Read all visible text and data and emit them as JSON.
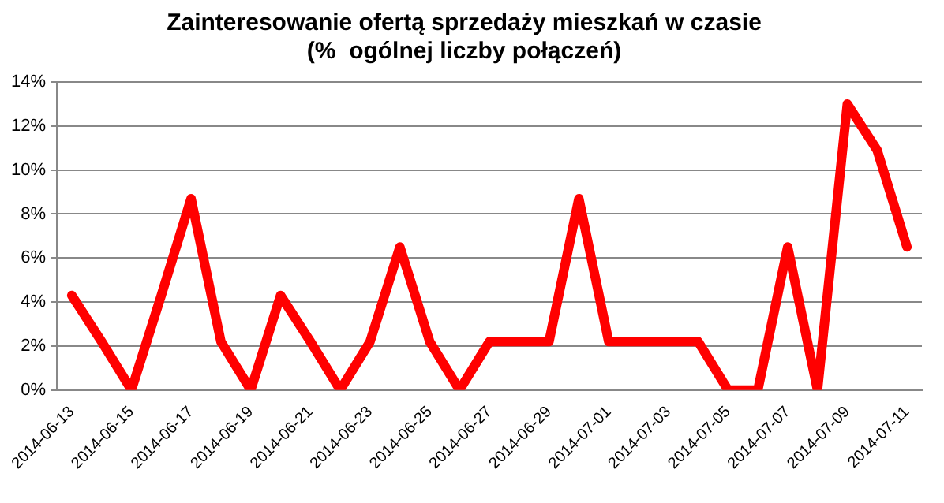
{
  "chart_data": {
    "type": "line",
    "title": "Zainteresowanie ofertą sprzedaży mieszkań w czasie\n(%  ogólnej liczby połączeń)",
    "categories": [
      "2014-06-13",
      null,
      "2014-06-15",
      null,
      "2014-06-17",
      null,
      "2014-06-19",
      null,
      "2014-06-21",
      null,
      "2014-06-23",
      null,
      "2014-06-25",
      null,
      "2014-06-27",
      null,
      "2014-06-29",
      null,
      "2014-07-01",
      null,
      "2014-07-03",
      null,
      "2014-07-05",
      null,
      "2014-07-07",
      null,
      "2014-07-09",
      null,
      "2014-07-11"
    ],
    "series": [
      {
        "color": "#ff0000",
        "values": [
          4.3,
          2.2,
          0,
          4.3,
          8.7,
          2.2,
          0,
          4.3,
          2.2,
          0,
          2.2,
          6.5,
          2.2,
          0,
          2.2,
          2.2,
          2.2,
          8.7,
          2.2,
          2.2,
          2.2,
          2.2,
          0,
          0,
          6.5,
          0,
          13.0,
          10.9,
          6.5
        ]
      }
    ],
    "ylim": [
      0,
      14
    ],
    "yticks": [
      {
        "value": 0,
        "label": "0%"
      },
      {
        "value": 2,
        "label": "2%"
      },
      {
        "value": 4,
        "label": "4%"
      },
      {
        "value": 6,
        "label": "6%"
      },
      {
        "value": 8,
        "label": "8%"
      },
      {
        "value": 10,
        "label": "10%"
      },
      {
        "value": 12,
        "label": "12%"
      },
      {
        "value": 14,
        "label": "14%"
      }
    ],
    "grid": "y",
    "legend": false,
    "marker": "none",
    "line_style": "solid"
  }
}
